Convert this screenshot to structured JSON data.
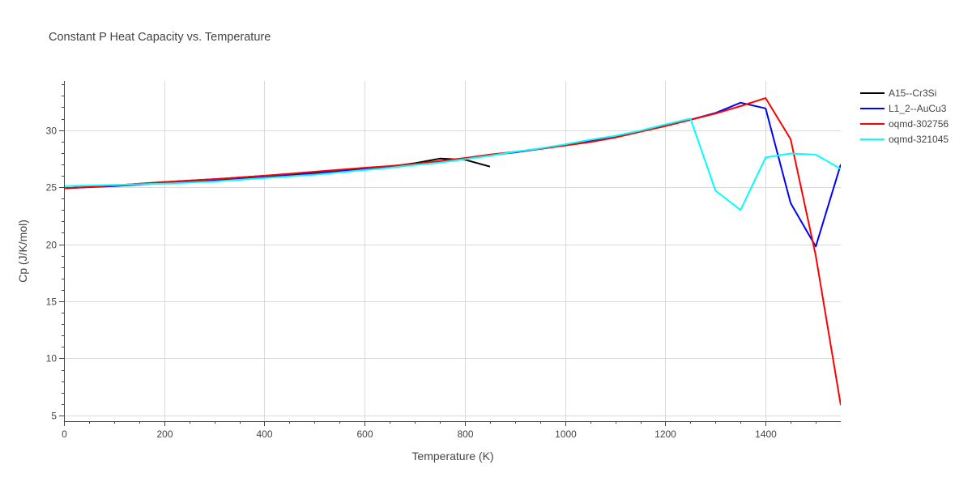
{
  "chart_data": {
    "type": "line",
    "title": "Constant P Heat Capacity vs. Temperature",
    "xlabel": "Temperature (K)",
    "ylabel": "Cp (J/K/mol)",
    "xlim": [
      0,
      1550
    ],
    "ylim": [
      4.5,
      34.3
    ],
    "xticks": [
      0,
      200,
      400,
      600,
      800,
      1000,
      1200,
      1400
    ],
    "yticks": [
      5,
      10,
      15,
      20,
      25,
      30
    ],
    "grid": true,
    "legend_position": "top-right",
    "series": [
      {
        "name": "A15--Cr3Si",
        "color": "#000000",
        "x": [
          0,
          100,
          200,
          300,
          400,
          500,
          600,
          650,
          700,
          750,
          800,
          850
        ],
        "y": [
          24.9,
          25.15,
          25.45,
          25.7,
          26.0,
          26.3,
          26.6,
          26.8,
          27.1,
          27.5,
          27.4,
          26.8
        ]
      },
      {
        "name": "L1_2--AuCu3",
        "color": "#0000ff",
        "x": [
          0,
          100,
          200,
          300,
          400,
          500,
          600,
          650,
          700,
          750,
          800,
          850,
          900,
          950,
          1000,
          1050,
          1100,
          1150,
          1200,
          1250,
          1300,
          1350,
          1400,
          1450,
          1500,
          1550
        ],
        "y": [
          24.9,
          25.1,
          25.35,
          25.6,
          25.9,
          26.2,
          26.6,
          26.8,
          27.0,
          27.25,
          27.5,
          27.8,
          28.05,
          28.35,
          28.7,
          29.05,
          29.45,
          29.9,
          30.4,
          30.9,
          31.5,
          32.4,
          31.9,
          23.6,
          19.8,
          27.0
        ]
      },
      {
        "name": "oqmd-302756",
        "color": "#ff0000",
        "x": [
          0,
          100,
          200,
          300,
          400,
          500,
          600,
          650,
          700,
          750,
          800,
          850,
          900,
          950,
          1000,
          1050,
          1100,
          1150,
          1200,
          1250,
          1300,
          1350,
          1400,
          1450,
          1500,
          1550
        ],
        "y": [
          24.9,
          25.15,
          25.45,
          25.7,
          26.0,
          26.35,
          26.7,
          26.85,
          27.05,
          27.3,
          27.55,
          27.85,
          28.1,
          28.35,
          28.65,
          28.95,
          29.35,
          29.85,
          30.35,
          30.9,
          31.45,
          32.1,
          32.8,
          29.2,
          19.0,
          5.9
        ]
      },
      {
        "name": "oqmd-321045",
        "color": "#00ffff",
        "x": [
          0,
          100,
          200,
          300,
          400,
          500,
          600,
          650,
          700,
          750,
          800,
          850,
          900,
          950,
          1000,
          1050,
          1100,
          1150,
          1200,
          1250,
          1300,
          1350,
          1400,
          1450,
          1500,
          1550
        ],
        "y": [
          25.1,
          25.2,
          25.3,
          25.5,
          25.8,
          26.1,
          26.5,
          26.7,
          26.95,
          27.15,
          27.45,
          27.75,
          28.1,
          28.4,
          28.75,
          29.15,
          29.5,
          29.95,
          30.5,
          31.0,
          24.7,
          23.0,
          27.6,
          27.95,
          27.85,
          26.6
        ]
      }
    ]
  }
}
